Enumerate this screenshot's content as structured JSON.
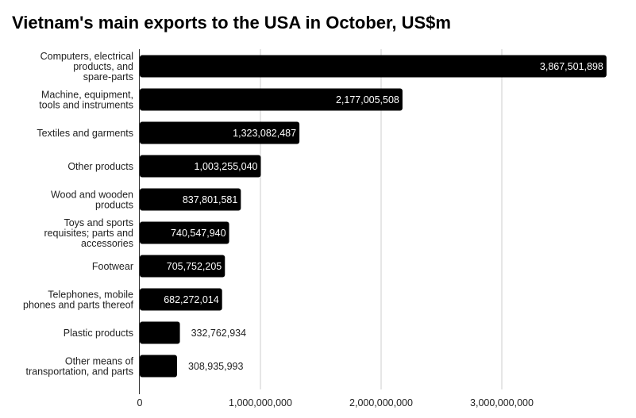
{
  "chart_data": {
    "type": "bar",
    "orientation": "horizontal",
    "title": "Vietnam's main exports to the USA in October, US$m",
    "categories": [
      "Computers, electrical products, and spare-parts",
      "Machine, equipment, tools and instruments",
      "Textiles and garments",
      "Other products",
      "Wood and wooden products",
      "Toys and sports requisites; parts and accessories",
      "Footwear",
      "Telephones, mobile phones and parts thereof",
      "Plastic products",
      "Other means of transportation, and parts"
    ],
    "category_lines": [
      [
        "Computers, electrical",
        "products, and",
        "spare-parts"
      ],
      [
        "Machine, equipment,",
        "tools and instruments"
      ],
      [
        "Textiles and garments"
      ],
      [
        "Other products"
      ],
      [
        "Wood and wooden",
        "products"
      ],
      [
        "Toys and sports",
        "requisites; parts and",
        "accessories"
      ],
      [
        "Footwear"
      ],
      [
        "Telephones, mobile",
        "phones and parts thereof"
      ],
      [
        "Plastic products"
      ],
      [
        "Other means of",
        "transportation, and parts"
      ]
    ],
    "values": [
      3867501898,
      2177005508,
      1323082487,
      1003255040,
      837801581,
      740547940,
      705752205,
      682272014,
      332762934,
      308935993
    ],
    "data_labels": [
      "3,867,501,898",
      "2,177,005,508",
      "1,323,082,487",
      "1,003,255,040",
      "837,801,581",
      "740,547,940",
      "705,752,205",
      "682,272,014",
      "332,762,934",
      "308,935,993"
    ],
    "x_ticks": [
      0,
      1000000000,
      2000000000,
      3000000000
    ],
    "x_tick_labels": [
      "0",
      "1,000,000,000",
      "2,000,000,000",
      "3,000,000,000"
    ],
    "xlim": [
      0,
      4000000000
    ],
    "xlabel": "",
    "ylabel": "",
    "grid": "vertical",
    "legend": "none",
    "bar_color": "#000000",
    "grid_color": "#cccccc"
  }
}
